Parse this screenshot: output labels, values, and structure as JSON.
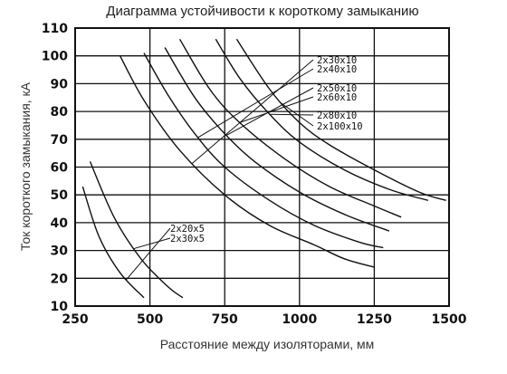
{
  "chart_data": {
    "type": "line",
    "title": "Диаграмма устойчивости к короткому замыканию",
    "xlabel": "Расстояние между изоляторами, мм",
    "ylabel": "Ток короткого замыкания, кА",
    "xlim": [
      250,
      1500
    ],
    "ylim": [
      10,
      110
    ],
    "xticks": [
      250,
      500,
      750,
      1000,
      1250,
      1500
    ],
    "yticks": [
      10,
      20,
      30,
      40,
      50,
      60,
      70,
      80,
      90,
      100,
      110
    ],
    "grid": true,
    "legend": "none",
    "series": [
      {
        "name": "2x20x5",
        "x": [
          275,
          330,
          400,
          480
        ],
        "y": [
          53,
          35,
          22,
          13
        ]
      },
      {
        "name": "2x30x5",
        "x": [
          300,
          380,
          470,
          560,
          610
        ],
        "y": [
          62,
          42,
          27,
          17,
          13
        ]
      },
      {
        "name": "2x30x10",
        "x": [
          400,
          480,
          600,
          750,
          900,
          1050,
          1150,
          1250
        ],
        "y": [
          100,
          84,
          66,
          50,
          39,
          32,
          27,
          24
        ]
      },
      {
        "name": "2x40x10",
        "x": [
          480,
          560,
          650,
          750,
          900,
          1050,
          1200,
          1280
        ],
        "y": [
          101,
          86,
          72,
          60,
          48,
          39,
          33,
          31
        ]
      },
      {
        "name": "2x50x10",
        "x": [
          550,
          650,
          750,
          850,
          1000,
          1150,
          1300
        ],
        "y": [
          103,
          85,
          72,
          62,
          51,
          43,
          37
        ]
      },
      {
        "name": "2x60x10",
        "x": [
          600,
          700,
          800,
          950,
          1100,
          1250,
          1340
        ],
        "y": [
          106,
          88,
          76,
          63,
          53,
          46,
          42
        ]
      },
      {
        "name": "2x80x10",
        "x": [
          720,
          800,
          900,
          1000,
          1150,
          1300,
          1430
        ],
        "y": [
          106,
          92,
          79,
          69,
          59,
          52,
          48
        ]
      },
      {
        "name": "2x100x10",
        "x": [
          790,
          900,
          1000,
          1100,
          1250,
          1400,
          1490
        ],
        "y": [
          106,
          88,
          76,
          68,
          59,
          51,
          48
        ]
      }
    ],
    "annotations": [
      "2x30x10",
      "2x40x10",
      "2x50x10",
      "2x60x10",
      "2x80x10",
      "2x100x10",
      "2x20x5",
      "2x30x5"
    ]
  }
}
